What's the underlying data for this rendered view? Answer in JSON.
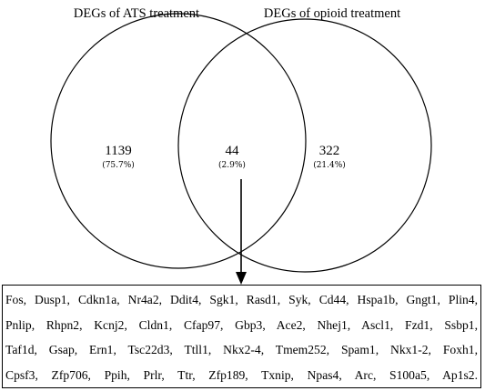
{
  "sets": [
    {
      "name": "DEGs of ATS treatment",
      "unique_count": "1139",
      "unique_percent": "(75.7%)"
    },
    {
      "name": "DEGs of opioid treatment",
      "unique_count": "322",
      "unique_percent": "(21.4%)"
    }
  ],
  "overlap": {
    "count": "44",
    "percent": "(2.9%)"
  },
  "overlap_genes": [
    "Fos, Dusp1, Cdkn1a, Nr4a2, Ddit4, Sgk1, Rasd1, Syk, Cd44, Hspa1b, Gngt1, Plin4,",
    "Pnlip, Rhpn2, Kcnj2, Cldn1, Cfap97, Gbp3, Ace2, Nhej1, Ascl1, Fzd1, Ssbp1,",
    "Taf1d, Gsap, Ern1, Tsc22d3, Ttll1, Nkx2-4, Tmem252, Spam1, Nkx1-2, Foxh1,",
    "Cpsf3, Zfp706, Ppih, Prlr, Ttr, Zfp189, Txnip, Npas4, Arc, S100a5, Ap1s2."
  ]
}
